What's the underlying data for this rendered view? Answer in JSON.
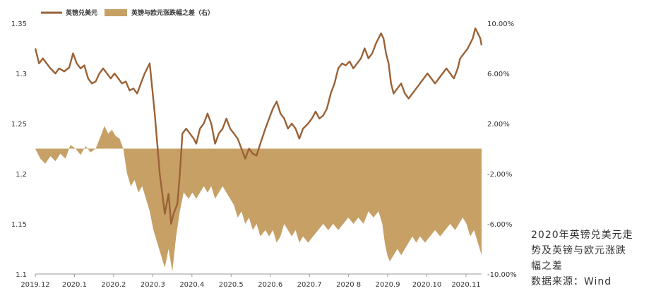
{
  "caption": {
    "line1": "2020年英镑兑美元走",
    "line2": "势及英镑与欧元涨跌",
    "line3": "幅之差",
    "line4": "数据来源：Wind"
  },
  "chart_data": {
    "type": "line+area",
    "legend": [
      "英镑兑美元",
      "英镑与欧元涨跌幅之差（右）"
    ],
    "legend_placement": "top-left",
    "colors": {
      "line": "#9a6236",
      "area": "#c7a066"
    },
    "left_axis": {
      "ylim": [
        1.1,
        1.35
      ],
      "ticks": [
        "1.35",
        "1.3",
        "1.25",
        "1.2",
        "1.15",
        "1.1"
      ],
      "tick_values": [
        1.35,
        1.3,
        1.25,
        1.2,
        1.15,
        1.1
      ]
    },
    "right_axis": {
      "ylim": [
        -10,
        10
      ],
      "ticks": [
        "10.00%",
        "6.00%",
        "2.00%",
        "-2.00%",
        "-6.00%",
        "-10.00%"
      ],
      "tick_values": [
        10,
        6,
        2,
        -2,
        -6,
        -10
      ]
    },
    "x_ticks": [
      "2019.12",
      "2020.1",
      "2020.2",
      "2020.3",
      "2020.4",
      "2020.5",
      "2020.6",
      "2020.7",
      "2020 8",
      "2020.9",
      "2020.10",
      "2020.11"
    ],
    "x_range": [
      "2019-12-01",
      "2020-11-20"
    ],
    "line_series": {
      "name": "英镑兑美元",
      "points": [
        [
          "2019-12-01",
          1.325
        ],
        [
          "2019-12-04",
          1.31
        ],
        [
          "2019-12-07",
          1.315
        ],
        [
          "2019-12-10",
          1.31
        ],
        [
          "2019-12-13",
          1.305
        ],
        [
          "2019-12-17",
          1.3
        ],
        [
          "2019-12-20",
          1.305
        ],
        [
          "2019-12-24",
          1.302
        ],
        [
          "2019-12-28",
          1.306
        ],
        [
          "2019-12-31",
          1.32
        ],
        [
          "2020-01-03",
          1.31
        ],
        [
          "2020-01-06",
          1.305
        ],
        [
          "2020-01-09",
          1.308
        ],
        [
          "2020-01-12",
          1.295
        ],
        [
          "2020-01-15",
          1.29
        ],
        [
          "2020-01-18",
          1.292
        ],
        [
          "2020-01-21",
          1.3
        ],
        [
          "2020-01-24",
          1.305
        ],
        [
          "2020-01-27",
          1.3
        ],
        [
          "2020-01-30",
          1.295
        ],
        [
          "2020-02-02",
          1.3
        ],
        [
          "2020-02-05",
          1.295
        ],
        [
          "2020-02-08",
          1.29
        ],
        [
          "2020-02-11",
          1.292
        ],
        [
          "2020-02-14",
          1.283
        ],
        [
          "2020-02-17",
          1.285
        ],
        [
          "2020-02-20",
          1.28
        ],
        [
          "2020-02-23",
          1.29
        ],
        [
          "2020-02-26",
          1.3
        ],
        [
          "2020-03-01",
          1.31
        ],
        [
          "2020-03-03",
          1.285
        ],
        [
          "2020-03-05",
          1.26
        ],
        [
          "2020-03-07",
          1.23
        ],
        [
          "2020-03-09",
          1.2
        ],
        [
          "2020-03-11",
          1.18
        ],
        [
          "2020-03-13",
          1.16
        ],
        [
          "2020-03-16",
          1.18
        ],
        [
          "2020-03-18",
          1.15
        ],
        [
          "2020-03-20",
          1.16
        ],
        [
          "2020-03-23",
          1.17
        ],
        [
          "2020-03-25",
          1.2
        ],
        [
          "2020-03-27",
          1.24
        ],
        [
          "2020-03-30",
          1.245
        ],
        [
          "2020-04-02",
          1.24
        ],
        [
          "2020-04-05",
          1.235
        ],
        [
          "2020-04-07",
          1.23
        ],
        [
          "2020-04-10",
          1.245
        ],
        [
          "2020-04-13",
          1.25
        ],
        [
          "2020-04-16",
          1.26
        ],
        [
          "2020-04-19",
          1.25
        ],
        [
          "2020-04-22",
          1.23
        ],
        [
          "2020-04-25",
          1.24
        ],
        [
          "2020-04-28",
          1.245
        ],
        [
          "2020-05-01",
          1.255
        ],
        [
          "2020-05-04",
          1.245
        ],
        [
          "2020-05-07",
          1.24
        ],
        [
          "2020-05-10",
          1.235
        ],
        [
          "2020-05-13",
          1.225
        ],
        [
          "2020-05-16",
          1.215
        ],
        [
          "2020-05-19",
          1.225
        ],
        [
          "2020-05-22",
          1.22
        ],
        [
          "2020-05-25",
          1.218
        ],
        [
          "2020-05-28",
          1.23
        ],
        [
          "2020-06-01",
          1.245
        ],
        [
          "2020-06-04",
          1.255
        ],
        [
          "2020-06-07",
          1.265
        ],
        [
          "2020-06-10",
          1.272
        ],
        [
          "2020-06-13",
          1.26
        ],
        [
          "2020-06-16",
          1.255
        ],
        [
          "2020-06-19",
          1.245
        ],
        [
          "2020-06-22",
          1.25
        ],
        [
          "2020-06-25",
          1.245
        ],
        [
          "2020-06-28",
          1.235
        ],
        [
          "2020-07-01",
          1.245
        ],
        [
          "2020-07-05",
          1.25
        ],
        [
          "2020-07-08",
          1.255
        ],
        [
          "2020-07-11",
          1.262
        ],
        [
          "2020-07-14",
          1.255
        ],
        [
          "2020-07-17",
          1.258
        ],
        [
          "2020-07-20",
          1.265
        ],
        [
          "2020-07-23",
          1.28
        ],
        [
          "2020-07-26",
          1.29
        ],
        [
          "2020-07-29",
          1.305
        ],
        [
          "2020-08-01",
          1.31
        ],
        [
          "2020-08-04",
          1.308
        ],
        [
          "2020-08-07",
          1.312
        ],
        [
          "2020-08-10",
          1.305
        ],
        [
          "2020-08-13",
          1.31
        ],
        [
          "2020-08-16",
          1.315
        ],
        [
          "2020-08-19",
          1.325
        ],
        [
          "2020-08-22",
          1.315
        ],
        [
          "2020-08-25",
          1.32
        ],
        [
          "2020-08-28",
          1.33
        ],
        [
          "2020-09-01",
          1.34
        ],
        [
          "2020-09-03",
          1.335
        ],
        [
          "2020-09-05",
          1.32
        ],
        [
          "2020-09-07",
          1.31
        ],
        [
          "2020-09-09",
          1.29
        ],
        [
          "2020-09-11",
          1.28
        ],
        [
          "2020-09-14",
          1.285
        ],
        [
          "2020-09-17",
          1.29
        ],
        [
          "2020-09-20",
          1.28
        ],
        [
          "2020-09-23",
          1.275
        ],
        [
          "2020-09-26",
          1.28
        ],
        [
          "2020-09-29",
          1.285
        ],
        [
          "2020-10-02",
          1.29
        ],
        [
          "2020-10-05",
          1.295
        ],
        [
          "2020-10-08",
          1.3
        ],
        [
          "2020-10-11",
          1.295
        ],
        [
          "2020-10-14",
          1.29
        ],
        [
          "2020-10-17",
          1.295
        ],
        [
          "2020-10-20",
          1.3
        ],
        [
          "2020-10-23",
          1.305
        ],
        [
          "2020-10-26",
          1.3
        ],
        [
          "2020-10-29",
          1.295
        ],
        [
          "2020-11-01",
          1.305
        ],
        [
          "2020-11-03",
          1.315
        ],
        [
          "2020-11-06",
          1.32
        ],
        [
          "2020-11-09",
          1.325
        ],
        [
          "2020-11-11",
          1.33
        ],
        [
          "2020-11-13",
          1.335
        ],
        [
          "2020-11-15",
          1.345
        ],
        [
          "2020-11-17",
          1.34
        ],
        [
          "2020-11-19",
          1.335
        ],
        [
          "2020-11-20",
          1.328
        ]
      ]
    },
    "area_series": {
      "name": "英镑与欧元涨跌幅之差（右）",
      "points": [
        [
          "2019-12-01",
          0.0
        ],
        [
          "2019-12-05",
          -0.8
        ],
        [
          "2019-12-09",
          -1.2
        ],
        [
          "2019-12-13",
          -0.6
        ],
        [
          "2019-12-17",
          -1.0
        ],
        [
          "2019-12-21",
          -0.4
        ],
        [
          "2019-12-25",
          -0.8
        ],
        [
          "2019-12-29",
          0.3
        ],
        [
          "2020-01-02",
          0.0
        ],
        [
          "2020-01-06",
          -0.5
        ],
        [
          "2020-01-10",
          0.2
        ],
        [
          "2020-01-14",
          -0.3
        ],
        [
          "2020-01-18",
          0.0
        ],
        [
          "2020-01-22",
          1.0
        ],
        [
          "2020-01-25",
          1.8
        ],
        [
          "2020-01-28",
          1.2
        ],
        [
          "2020-01-31",
          1.5
        ],
        [
          "2020-02-03",
          1.0
        ],
        [
          "2020-02-06",
          0.8
        ],
        [
          "2020-02-09",
          0.0
        ],
        [
          "2020-02-12",
          -2.0
        ],
        [
          "2020-02-15",
          -3.0
        ],
        [
          "2020-02-18",
          -2.5
        ],
        [
          "2020-02-21",
          -3.5
        ],
        [
          "2020-02-24",
          -3.0
        ],
        [
          "2020-02-27",
          -4.0
        ],
        [
          "2020-03-01",
          -5.0
        ],
        [
          "2020-03-04",
          -6.5
        ],
        [
          "2020-03-07",
          -7.5
        ],
        [
          "2020-03-10",
          -8.5
        ],
        [
          "2020-03-13",
          -9.5
        ],
        [
          "2020-03-16",
          -8.0
        ],
        [
          "2020-03-19",
          -9.8
        ],
        [
          "2020-03-22",
          -7.0
        ],
        [
          "2020-03-25",
          -5.0
        ],
        [
          "2020-03-28",
          -3.5
        ],
        [
          "2020-04-01",
          -4.0
        ],
        [
          "2020-04-04",
          -3.5
        ],
        [
          "2020-04-07",
          -4.0
        ],
        [
          "2020-04-10",
          -3.5
        ],
        [
          "2020-04-13",
          -3.0
        ],
        [
          "2020-04-16",
          -3.5
        ],
        [
          "2020-04-19",
          -3.0
        ],
        [
          "2020-04-22",
          -4.0
        ],
        [
          "2020-04-25",
          -3.5
        ],
        [
          "2020-04-28",
          -3.0
        ],
        [
          "2020-05-01",
          -3.5
        ],
        [
          "2020-05-04",
          -4.0
        ],
        [
          "2020-05-07",
          -4.5
        ],
        [
          "2020-05-10",
          -5.5
        ],
        [
          "2020-05-13",
          -5.0
        ],
        [
          "2020-05-16",
          -6.0
        ],
        [
          "2020-05-19",
          -5.5
        ],
        [
          "2020-05-22",
          -6.5
        ],
        [
          "2020-05-25",
          -6.0
        ],
        [
          "2020-05-28",
          -7.0
        ],
        [
          "2020-06-01",
          -6.5
        ],
        [
          "2020-06-04",
          -7.0
        ],
        [
          "2020-06-07",
          -6.5
        ],
        [
          "2020-06-10",
          -7.5
        ],
        [
          "2020-06-13",
          -7.0
        ],
        [
          "2020-06-16",
          -6.0
        ],
        [
          "2020-06-19",
          -6.5
        ],
        [
          "2020-06-22",
          -7.0
        ],
        [
          "2020-06-25",
          -6.5
        ],
        [
          "2020-06-28",
          -7.5
        ],
        [
          "2020-07-01",
          -7.0
        ],
        [
          "2020-07-05",
          -7.5
        ],
        [
          "2020-07-09",
          -7.0
        ],
        [
          "2020-07-13",
          -6.5
        ],
        [
          "2020-07-17",
          -6.0
        ],
        [
          "2020-07-21",
          -6.5
        ],
        [
          "2020-07-25",
          -6.0
        ],
        [
          "2020-07-29",
          -6.5
        ],
        [
          "2020-08-02",
          -6.0
        ],
        [
          "2020-08-06",
          -5.5
        ],
        [
          "2020-08-10",
          -6.0
        ],
        [
          "2020-08-14",
          -5.5
        ],
        [
          "2020-08-18",
          -6.0
        ],
        [
          "2020-08-22",
          -5.0
        ],
        [
          "2020-08-26",
          -5.5
        ],
        [
          "2020-08-30",
          -5.0
        ],
        [
          "2020-09-02",
          -6.0
        ],
        [
          "2020-09-04",
          -7.5
        ],
        [
          "2020-09-06",
          -8.5
        ],
        [
          "2020-09-08",
          -9.0
        ],
        [
          "2020-09-11",
          -8.5
        ],
        [
          "2020-09-14",
          -8.0
        ],
        [
          "2020-09-17",
          -8.5
        ],
        [
          "2020-09-20",
          -8.0
        ],
        [
          "2020-09-23",
          -7.5
        ],
        [
          "2020-09-26",
          -7.0
        ],
        [
          "2020-09-29",
          -7.5
        ],
        [
          "2020-10-02",
          -7.0
        ],
        [
          "2020-10-06",
          -7.5
        ],
        [
          "2020-10-10",
          -7.0
        ],
        [
          "2020-10-14",
          -6.5
        ],
        [
          "2020-10-18",
          -7.0
        ],
        [
          "2020-10-22",
          -6.5
        ],
        [
          "2020-10-26",
          -6.0
        ],
        [
          "2020-10-30",
          -6.5
        ],
        [
          "2020-11-02",
          -6.0
        ],
        [
          "2020-11-05",
          -5.5
        ],
        [
          "2020-11-08",
          -6.0
        ],
        [
          "2020-11-11",
          -7.0
        ],
        [
          "2020-11-14",
          -6.5
        ],
        [
          "2020-11-17",
          -7.5
        ],
        [
          "2020-11-20",
          -8.5
        ]
      ]
    }
  }
}
